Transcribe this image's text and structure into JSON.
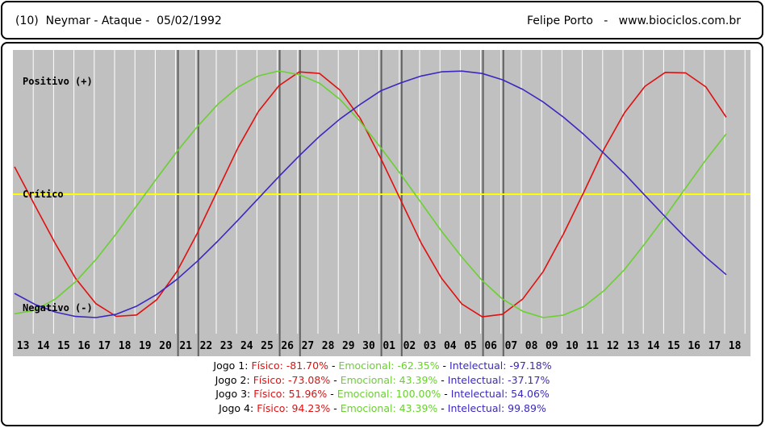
{
  "header": {
    "title": "(10)  Neymar - Ataque -  05/02/1992",
    "author": "Felipe Porto   -   www.biociclos.com.br"
  },
  "chart_data": {
    "type": "line",
    "categories": [
      "13",
      "14",
      "15",
      "16",
      "17",
      "18",
      "19",
      "20",
      "21",
      "22",
      "23",
      "24",
      "25",
      "26",
      "27",
      "28",
      "29",
      "30",
      "01",
      "02",
      "03",
      "04",
      "05",
      "06",
      "07",
      "08",
      "09",
      "10",
      "11",
      "12",
      "13",
      "14",
      "15",
      "16",
      "17",
      "18"
    ],
    "ylim": [
      -100,
      100
    ],
    "y_labels": {
      "positive": "Positivo (+)",
      "critical": "Crítico",
      "negative": "Negativo (-)"
    },
    "series": [
      {
        "name": "Físico",
        "color": "#e01010",
        "values": [
          22.3,
          -9.0,
          -39.8,
          -68.2,
          -88.7,
          -99.0,
          -97.9,
          -85.4,
          -62.3,
          -31.2,
          3.6,
          38.1,
          67.3,
          88.0,
          99.2,
          98.0,
          84.5,
          61.6,
          29.5,
          -5.1,
          -39.7,
          -68.2,
          -89.0,
          -99.4,
          -97.3,
          -84.8,
          -62.6,
          -32.0,
          1.9,
          36.9,
          66.2,
          87.5,
          98.8,
          98.4,
          87.0,
          62.4
        ]
      },
      {
        "name": "Emocional",
        "color": "#6ad030",
        "values": [
          -97.0,
          -94.0,
          -85.0,
          -71.0,
          -53.0,
          -32.0,
          -9.5,
          13.0,
          35.0,
          55.0,
          73.0,
          87.0,
          96.0,
          100.0,
          97.0,
          90.0,
          77.0,
          59.0,
          38.0,
          16.0,
          -7.0,
          -30.0,
          -51.0,
          -70.0,
          -85.0,
          -95.0,
          -100.0,
          -98.0,
          -91.0,
          -78.0,
          -61.0,
          -40.0,
          -18.0,
          5.0,
          28.0,
          49.0
        ]
      },
      {
        "name": "Intelectual",
        "color": "#3a28c0",
        "values": [
          -80.4,
          -89.3,
          -95.5,
          -99.1,
          -100.0,
          -97.3,
          -90.8,
          -81.2,
          -68.8,
          -54.1,
          -37.9,
          -20.8,
          -3.2,
          14.3,
          31.2,
          47.0,
          61.0,
          72.9,
          83.8,
          90.4,
          95.9,
          99.3,
          99.9,
          97.9,
          92.8,
          85.0,
          74.8,
          62.4,
          48.4,
          32.9,
          16.6,
          -0.9,
          -18.3,
          -35.2,
          -51.1,
          -65.2
        ]
      }
    ]
  },
  "games": [
    {
      "label": "Jogo 1:",
      "fisico": "Físico: -81.70%",
      "emocional": "Emocional: -62.35%",
      "intelectual": "Intelectual: -97.18%",
      "x": [
        "17",
        "18"
      ]
    },
    {
      "label": "Jogo 2:",
      "fisico": "Físico: -73.08%",
      "emocional": "Emocional: 43.39%",
      "intelectual": "Intelectual: -37.17%",
      "x": [
        "22",
        "23"
      ]
    },
    {
      "label": "Jogo 3:",
      "fisico": "Físico: 51.96%",
      "emocional": "Emocional: 100.00%",
      "intelectual": "Intelectual: 54.06%",
      "x": [
        "27",
        "28"
      ]
    },
    {
      "label": "Jogo 4:",
      "fisico": "Físico: 94.23%",
      "emocional": "Emocional: 43.39%",
      "intelectual": "Intelectual: 99.89%",
      "x": [
        "02",
        "03"
      ]
    }
  ],
  "game_line_indices": [
    4,
    5,
    9,
    10,
    14,
    15,
    19,
    20
  ],
  "colors": {
    "plot_bg": "#c0c0c0",
    "grid": "#ffffff",
    "critical": "#ffff00",
    "game_line": "#606060",
    "fisico": "#e01010",
    "emocional": "#6ad030",
    "intelectual": "#3a28c0"
  }
}
